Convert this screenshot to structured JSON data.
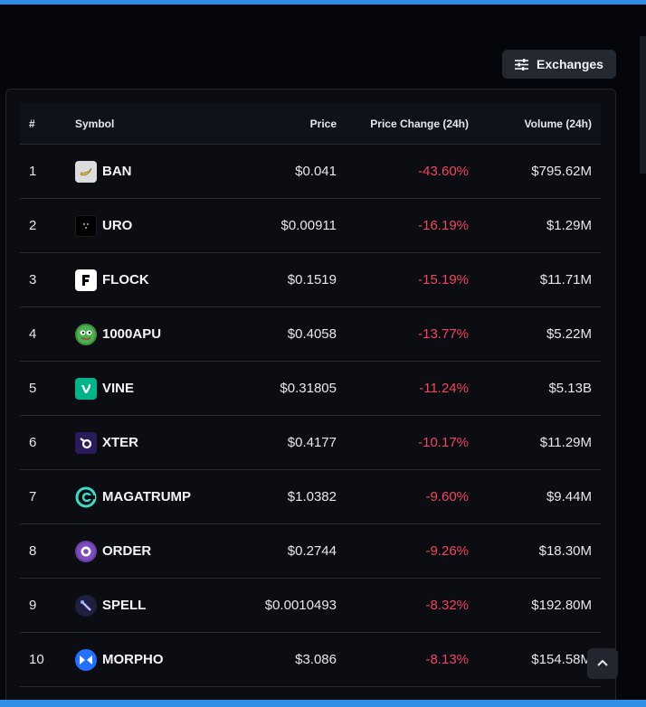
{
  "toolbar": {
    "exchanges_label": "Exchanges"
  },
  "table": {
    "headers": {
      "rank": "#",
      "symbol": "Symbol",
      "price": "Price",
      "change": "Price Change (24h)",
      "volume": "Volume (24h)"
    },
    "rows": [
      {
        "rank": "1",
        "symbol": "BAN",
        "price": "$0.041",
        "change": "-43.60%",
        "volume": "$795.62M",
        "icon": "banana-icon"
      },
      {
        "rank": "2",
        "symbol": "URO",
        "price": "$0.00911",
        "change": "-16.19%",
        "volume": "$1.29M",
        "icon": "uro-icon"
      },
      {
        "rank": "3",
        "symbol": "FLOCK",
        "price": "$0.1519",
        "change": "-15.19%",
        "volume": "$11.71M",
        "icon": "flock-icon"
      },
      {
        "rank": "4",
        "symbol": "1000APU",
        "price": "$0.4058",
        "change": "-13.77%",
        "volume": "$5.22M",
        "icon": "apu-frog-icon"
      },
      {
        "rank": "5",
        "symbol": "VINE",
        "price": "$0.31805",
        "change": "-11.24%",
        "volume": "$5.13B",
        "icon": "vine-icon"
      },
      {
        "rank": "6",
        "symbol": "XTER",
        "price": "$0.4177",
        "change": "-10.17%",
        "volume": "$11.29M",
        "icon": "xter-icon"
      },
      {
        "rank": "7",
        "symbol": "MAGATRUMP",
        "price": "$1.0382",
        "change": "-9.60%",
        "volume": "$9.44M",
        "icon": "magatrump-icon"
      },
      {
        "rank": "8",
        "symbol": "ORDER",
        "price": "$0.2744",
        "change": "-9.26%",
        "volume": "$18.30M",
        "icon": "order-icon"
      },
      {
        "rank": "9",
        "symbol": "SPELL",
        "price": "$0.0010493",
        "change": "-8.32%",
        "volume": "$192.80M",
        "icon": "spell-icon"
      },
      {
        "rank": "10",
        "symbol": "MORPHO",
        "price": "$3.086",
        "change": "-8.13%",
        "volume": "$154.58M",
        "icon": "morpho-icon"
      }
    ]
  },
  "colors": {
    "accent_bar": "#2f8fe6",
    "negative": "#f0475d",
    "background": "#04060b"
  }
}
